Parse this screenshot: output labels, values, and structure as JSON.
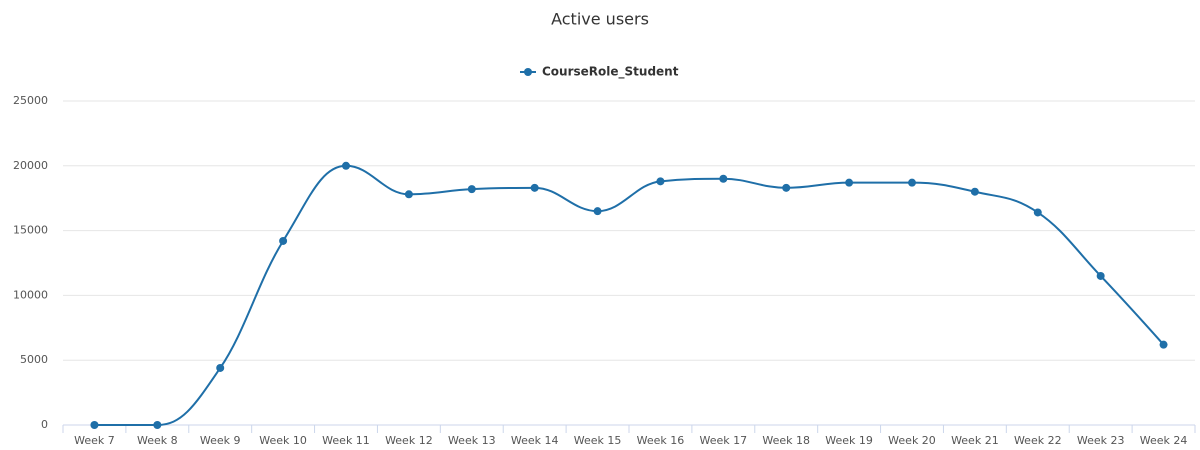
{
  "chart_data": {
    "type": "line",
    "title": "Active users",
    "categories": [
      "Week 7",
      "Week 8",
      "Week 9",
      "Week 10",
      "Week 11",
      "Week 12",
      "Week 13",
      "Week 14",
      "Week 15",
      "Week 16",
      "Week 17",
      "Week 18",
      "Week 19",
      "Week 20",
      "Week 21",
      "Week 22",
      "Week 23",
      "Week 24"
    ],
    "series": [
      {
        "name": "CourseRole_Student",
        "color": "#1f6fa8",
        "values": [
          0,
          0,
          4400,
          14200,
          20000,
          17800,
          18200,
          18300,
          16500,
          18800,
          19000,
          18300,
          18700,
          18700,
          18000,
          16400,
          11500,
          6200
        ]
      }
    ],
    "ylim": [
      0,
      25000
    ],
    "yticks": [
      0,
      5000,
      10000,
      15000,
      20000,
      25000
    ],
    "grid": true,
    "smooth": true,
    "legend": "top"
  }
}
